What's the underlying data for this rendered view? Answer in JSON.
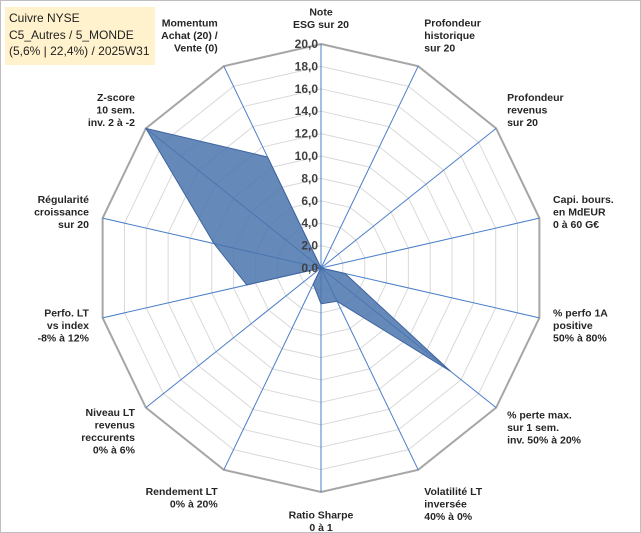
{
  "title": {
    "line1": "Cuivre NYSE",
    "line2": "C5_Autres / 5_MONDE",
    "line3": "(5,6% | 22,4%) / 2025W31"
  },
  "chart_data": {
    "type": "radar",
    "rmin": 0,
    "rmax": 20,
    "tick_step": 2,
    "ticks": [
      "0,0",
      "2,0",
      "4,0",
      "6,0",
      "8,0",
      "10,0",
      "12,0",
      "14,0",
      "16,0",
      "18,0",
      "20,0"
    ],
    "grid": true,
    "categories": [
      [
        "Note",
        "ESG sur 20"
      ],
      [
        "Profondeur",
        "historique",
        "sur 20"
      ],
      [
        "Profondeur",
        "revenus",
        "sur 20"
      ],
      [
        "Capi. bours.",
        "en MdEUR",
        "0 à 60 G€"
      ],
      [
        "% perfo 1A",
        "positive",
        "50% à 80%"
      ],
      [
        "% perte max.",
        "sur 1 sem.",
        "inv. 50% à 20%"
      ],
      [
        "Volatilité LT",
        "inversée",
        "40% à 0%"
      ],
      [
        "Ratio Sharpe",
        "0 à 1"
      ],
      [
        "Rendement LT",
        "0% à 20%"
      ],
      [
        "Niveau LT",
        "revenus",
        "reccurents",
        "0% à 6%"
      ],
      [
        "Perfo. LT",
        "vs index",
        "-8% à 12%"
      ],
      [
        "Régularité",
        "croissance",
        "sur 20"
      ],
      [
        "Z-score",
        "10 sem.",
        "inv. 2 à -2"
      ],
      [
        "Momentum",
        "Achat (20) /",
        "Vente (0)"
      ]
    ],
    "values": [
      0,
      0,
      0,
      0,
      2.2,
      14.8,
      3.3,
      3.2,
      1.6,
      0,
      6.8,
      9.8,
      20,
      11
    ],
    "colors": {
      "fill": "#4a74ad",
      "stroke": "#3f64a0",
      "spoke": "#4a7fc8",
      "grid": "#d9d9d9",
      "outer": "#a6a6a6"
    }
  }
}
